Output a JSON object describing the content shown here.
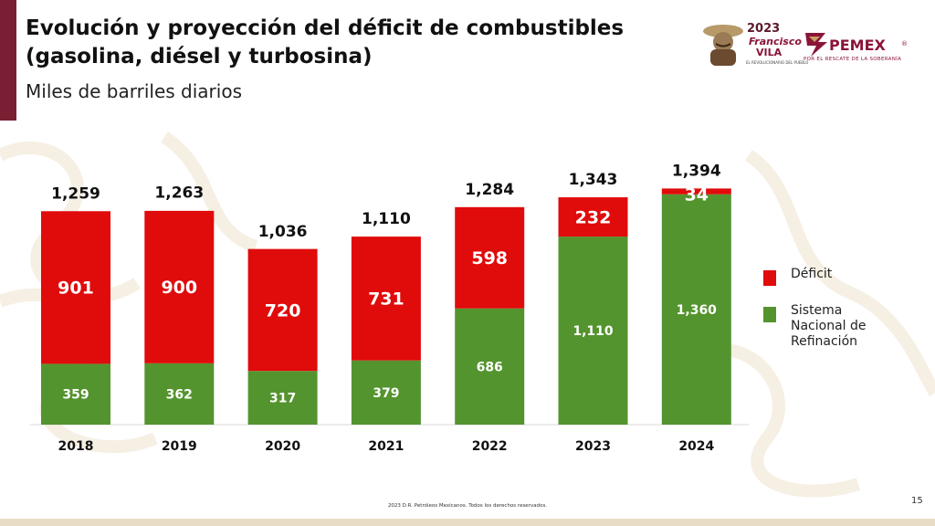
{
  "header": {
    "title_line1": "Evolución y proyección del déficit de combustibles",
    "title_line2": "(gasolina, diésel y turbosina)",
    "subtitle": "Miles de barriles diarios"
  },
  "logos": {
    "year_logo": {
      "year": "2023",
      "name_line1": "Francisco",
      "name_line2": "VILA",
      "small_text": "EL REVOLUCIONARIO DEL PUEBLO"
    },
    "pemex": {
      "word": "PEMEX",
      "registered": "®",
      "tagline": "POR EL RESCATE DE LA SOBERANÍA"
    }
  },
  "chart_data": {
    "type": "bar",
    "stacked": true,
    "categories": [
      "2018",
      "2019",
      "2020",
      "2021",
      "2022",
      "2023",
      "2024"
    ],
    "series": [
      {
        "name": "Sistema Nacional de Refinación",
        "color": "#54942e",
        "values": [
          359,
          362,
          317,
          379,
          686,
          1110,
          1360
        ],
        "labels": [
          "359",
          "362",
          "317",
          "379",
          "686",
          "1,110",
          "1,360"
        ]
      },
      {
        "name": "Déficit",
        "color": "#e00b0b",
        "values": [
          901,
          900,
          720,
          731,
          598,
          232,
          34
        ],
        "labels": [
          "901",
          "900",
          "720",
          "731",
          "598",
          "232",
          "34"
        ]
      }
    ],
    "totals": [
      1259,
      1263,
      1036,
      1110,
      1284,
      1343,
      1394
    ],
    "total_labels": [
      "1,259",
      "1,263",
      "1,036",
      "1,110",
      "1,284",
      "1,343",
      "1,394"
    ],
    "ylim": [
      0,
      1400
    ],
    "grid": false,
    "legend_position": "right"
  },
  "legend": [
    {
      "label": "Déficit",
      "color": "#e00b0b"
    },
    {
      "label": "Sistema Nacional de Refinación",
      "color": "#54942e"
    }
  ],
  "footer": {
    "copyright": "2023 D.R. Petróleos Mexicanos. Todos los derechos reservados.",
    "page_number": "15"
  }
}
